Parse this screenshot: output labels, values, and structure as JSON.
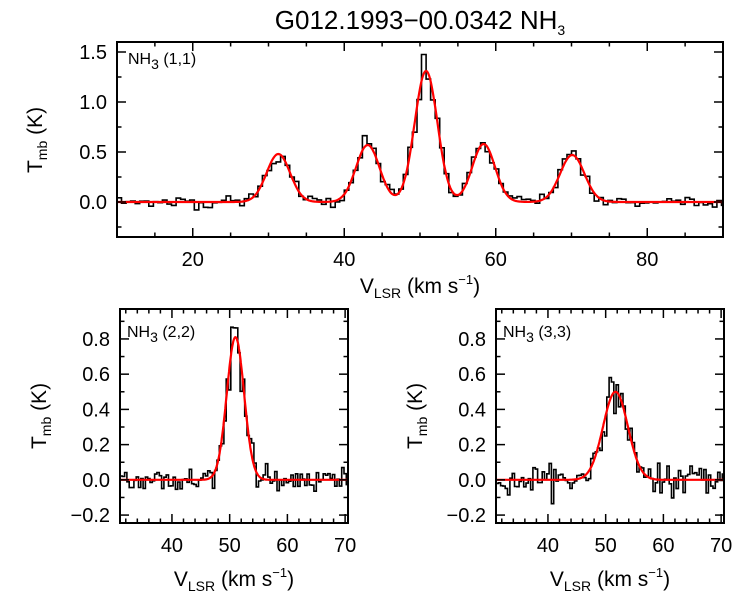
{
  "title": {
    "main": "G012.1993−00.0342 NH",
    "sub": "3"
  },
  "colors": {
    "spectrum": "#000000",
    "fit": "#ff0000",
    "axes": "#000000"
  },
  "chart_data": [
    {
      "type": "line",
      "panel_label": {
        "mol": "NH",
        "sub": "3",
        "transition": " (1,1)"
      },
      "xlabel": {
        "main": "V",
        "sub": "LSR",
        "unit": " (km s",
        "sup": "−1",
        "close": ")"
      },
      "ylabel": {
        "main": "T",
        "sub": "mb",
        "unit": " (K)"
      },
      "xlim": [
        10,
        90
      ],
      "ylim": [
        -0.35,
        1.6
      ],
      "xticks": [
        20,
        40,
        60,
        80
      ],
      "xtick_labels": [
        "20",
        "40",
        "60",
        "80"
      ],
      "x_minor": 5,
      "yticks": [
        0.0,
        0.5,
        1.0,
        1.5
      ],
      "ytick_labels": [
        "0.0",
        "0.5",
        "1.0",
        "1.5"
      ],
      "y_minor": 0.25,
      "series": [
        {
          "kind": "spectrum-histogram",
          "channel_width": 0.6,
          "noise_rms": 0.03
        },
        {
          "kind": "gaussian-fit",
          "components": [
            {
              "center": 31.3,
              "amplitude": 0.48,
              "sigma": 1.55
            },
            {
              "center": 43.1,
              "amplitude": 0.57,
              "sigma": 1.55
            },
            {
              "center": 50.8,
              "amplitude": 1.31,
              "sigma": 1.5
            },
            {
              "center": 58.4,
              "amplitude": 0.58,
              "sigma": 1.5
            },
            {
              "center": 70.1,
              "amplitude": 0.47,
              "sigma": 1.6
            }
          ]
        }
      ],
      "grid": false
    },
    {
      "type": "line",
      "panel_label": {
        "mol": "NH",
        "sub": "3",
        "transition": " (2,2)"
      },
      "xlabel": {
        "main": "V",
        "sub": "LSR",
        "unit": " (km s",
        "sup": "−1",
        "close": ")"
      },
      "ylabel": {
        "main": "T",
        "sub": "mb",
        "unit": " (K)"
      },
      "xlim": [
        31,
        70.5
      ],
      "ylim": [
        -0.245,
        0.97
      ],
      "xticks": [
        40,
        50,
        60,
        70
      ],
      "xtick_labels": [
        "40",
        "50",
        "60",
        "70"
      ],
      "x_minor": 2,
      "yticks": [
        -0.2,
        0.0,
        0.2,
        0.4,
        0.6,
        0.8
      ],
      "ytick_labels": [
        "−0.2",
        "0.0",
        "0.2",
        "0.4",
        "0.6",
        "0.8"
      ],
      "y_minor": 0.1,
      "series": [
        {
          "kind": "spectrum-histogram",
          "channel_width": 0.4,
          "noise_rms": 0.04
        },
        {
          "kind": "gaussian-fit",
          "components": [
            {
              "center": 51.0,
              "amplitude": 0.81,
              "sigma": 1.5
            }
          ]
        }
      ],
      "grid": false
    },
    {
      "type": "line",
      "panel_label": {
        "mol": "NH",
        "sub": "3",
        "transition": " (3,3)"
      },
      "xlabel": {
        "main": "V",
        "sub": "LSR",
        "unit": " (km s",
        "sup": "−1",
        "close": ")"
      },
      "ylabel": {
        "main": "T",
        "sub": "mb",
        "unit": " (K)"
      },
      "xlim": [
        31,
        70.5
      ],
      "ylim": [
        -0.245,
        0.97
      ],
      "xticks": [
        40,
        50,
        60,
        70
      ],
      "xtick_labels": [
        "40",
        "50",
        "60",
        "70"
      ],
      "x_minor": 2,
      "yticks": [
        -0.2,
        0.0,
        0.2,
        0.4,
        0.6,
        0.8
      ],
      "ytick_labels": [
        "−0.2",
        "0.0",
        "0.2",
        "0.4",
        "0.6",
        "0.8"
      ],
      "y_minor": 0.1,
      "series": [
        {
          "kind": "spectrum-histogram",
          "channel_width": 0.4,
          "noise_rms": 0.04
        },
        {
          "kind": "gaussian-fit",
          "components": [
            {
              "center": 51.7,
              "amplitude": 0.5,
              "sigma": 2.15
            }
          ]
        }
      ],
      "grid": false
    }
  ]
}
